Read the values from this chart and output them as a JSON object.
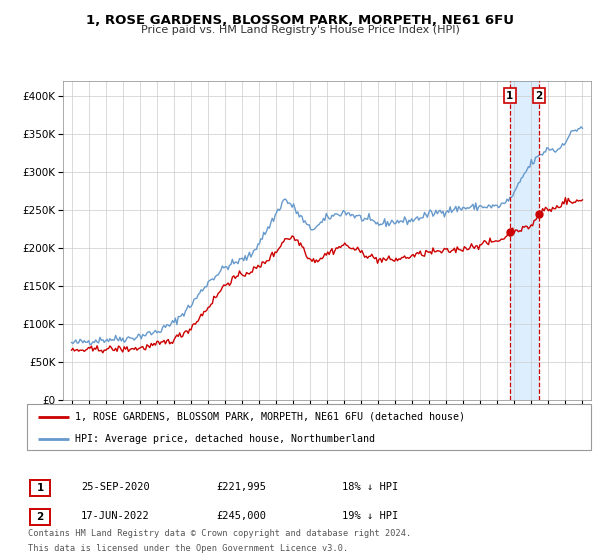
{
  "title": "1, ROSE GARDENS, BLOSSOM PARK, MORPETH, NE61 6FU",
  "subtitle": "Price paid vs. HM Land Registry's House Price Index (HPI)",
  "legend_line1": "1, ROSE GARDENS, BLOSSOM PARK, MORPETH, NE61 6FU (detached house)",
  "legend_line2": "HPI: Average price, detached house, Northumberland",
  "transaction1_label": "1",
  "transaction1_date": "25-SEP-2020",
  "transaction1_price": "£221,995",
  "transaction1_hpi": "18% ↓ HPI",
  "transaction2_label": "2",
  "transaction2_date": "17-JUN-2022",
  "transaction2_price": "£245,000",
  "transaction2_hpi": "19% ↓ HPI",
  "footer_line1": "Contains HM Land Registry data © Crown copyright and database right 2024.",
  "footer_line2": "This data is licensed under the Open Government Licence v3.0.",
  "red_color": "#cc0000",
  "blue_color": "#6699cc",
  "highlight_bg": "#ddeeff",
  "transaction1_x": 2020.73,
  "transaction2_x": 2022.46,
  "ylim_min": 0,
  "ylim_max": 420000,
  "xlim_min": 1994.5,
  "xlim_max": 2025.5
}
